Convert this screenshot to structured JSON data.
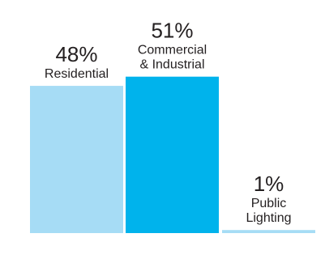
{
  "chart_data": {
    "type": "bar",
    "categories": [
      [
        "Residential"
      ],
      [
        "Commercial",
        "& Industrial"
      ],
      [
        "Public",
        "Lighting"
      ]
    ],
    "values": [
      48,
      51,
      1
    ],
    "value_labels": [
      "48%",
      "51%",
      "1%"
    ],
    "colors": [
      "#a6dcf5",
      "#00b3ec",
      "#a6dcf5"
    ],
    "ylim": [
      0,
      100
    ],
    "title": "",
    "xlabel": "",
    "ylabel": "",
    "grid": false,
    "legend": "none"
  }
}
